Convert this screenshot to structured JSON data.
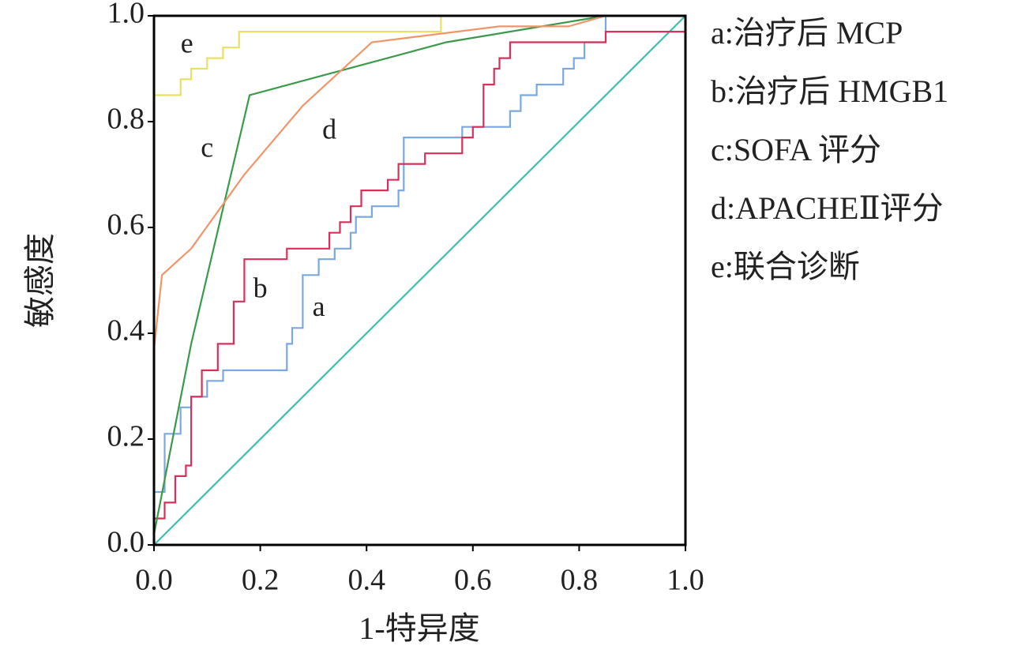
{
  "chart_data": {
    "type": "line",
    "x_label": "1-特异度",
    "y_label": "敏感度",
    "xlim": [
      0,
      1
    ],
    "ylim": [
      0,
      1
    ],
    "xticks": [
      {
        "value": 0,
        "label": "0.0"
      },
      0.2,
      0.4,
      0.6,
      0.8,
      {
        "value": 1,
        "label": "1.0"
      }
    ],
    "yticks": [
      {
        "value": 0,
        "label": "0.0"
      },
      0.2,
      0.4,
      0.6,
      0.8,
      {
        "value": 1,
        "label": "1.0"
      }
    ],
    "grid": false,
    "legend": "right",
    "reference": {
      "color": "#3cbfae",
      "x": [
        0,
        1
      ],
      "values": [
        0,
        1
      ]
    },
    "series": [
      {
        "name": "a:治疗后 MCP",
        "color": "#7aa8e0",
        "x": [
          0,
          0.02,
          0.02,
          0.05,
          0.05,
          0.07,
          0.07,
          0.1,
          0.1,
          0.13,
          0.13,
          0.25,
          0.25,
          0.26,
          0.26,
          0.28,
          0.28,
          0.31,
          0.31,
          0.34,
          0.34,
          0.37,
          0.37,
          0.38,
          0.38,
          0.41,
          0.41,
          0.46,
          0.46,
          0.47,
          0.47,
          0.58,
          0.58,
          0.67,
          0.67,
          0.69,
          0.69,
          0.72,
          0.72,
          0.77,
          0.77,
          0.79,
          0.79,
          0.81,
          0.81,
          0.85,
          0.85,
          1
        ],
        "values": [
          0.1,
          0.1,
          0.21,
          0.21,
          0.26,
          0.26,
          0.28,
          0.28,
          0.31,
          0.31,
          0.33,
          0.33,
          0.38,
          0.38,
          0.41,
          0.41,
          0.51,
          0.51,
          0.54,
          0.54,
          0.56,
          0.56,
          0.59,
          0.59,
          0.62,
          0.62,
          0.64,
          0.64,
          0.67,
          0.67,
          0.77,
          0.77,
          0.79,
          0.79,
          0.82,
          0.82,
          0.85,
          0.85,
          0.87,
          0.87,
          0.9,
          0.9,
          0.92,
          0.92,
          0.95,
          0.95,
          1,
          1
        ]
      },
      {
        "name": "b:治疗后 HMGB1",
        "color": "#d8305a",
        "x": [
          0,
          0.02,
          0.02,
          0.04,
          0.04,
          0.06,
          0.06,
          0.07,
          0.07,
          0.09,
          0.09,
          0.12,
          0.12,
          0.15,
          0.15,
          0.17,
          0.17,
          0.25,
          0.25,
          0.33,
          0.33,
          0.35,
          0.35,
          0.37,
          0.37,
          0.39,
          0.39,
          0.44,
          0.44,
          0.46,
          0.46,
          0.51,
          0.51,
          0.58,
          0.58,
          0.6,
          0.6,
          0.62,
          0.62,
          0.64,
          0.64,
          0.65,
          0.65,
          0.67,
          0.67,
          0.85,
          0.85,
          1
        ],
        "values": [
          0.05,
          0.05,
          0.08,
          0.08,
          0.13,
          0.13,
          0.15,
          0.15,
          0.28,
          0.28,
          0.33,
          0.33,
          0.38,
          0.38,
          0.46,
          0.46,
          0.54,
          0.54,
          0.56,
          0.56,
          0.59,
          0.59,
          0.61,
          0.61,
          0.64,
          0.64,
          0.67,
          0.67,
          0.69,
          0.69,
          0.72,
          0.72,
          0.74,
          0.74,
          0.77,
          0.77,
          0.79,
          0.79,
          0.87,
          0.87,
          0.9,
          0.9,
          0.92,
          0.92,
          0.95,
          0.95,
          0.97,
          0.97
        ]
      },
      {
        "name": "c:SOFA 评分",
        "color": "#3a9a4a",
        "x": [
          0,
          0.07,
          0.18,
          0.55,
          0.85,
          1
        ],
        "values": [
          0.02,
          0.38,
          0.85,
          0.95,
          1,
          1
        ]
      },
      {
        "name": "d:APACHEⅡ评分",
        "color": "#f0956a",
        "x": [
          0,
          0.015,
          0.07,
          0.17,
          0.28,
          0.41,
          0.65,
          0.78,
          0.85,
          1
        ],
        "values": [
          0.37,
          0.51,
          0.56,
          0.7,
          0.83,
          0.95,
          0.98,
          0.98,
          1,
          1
        ]
      },
      {
        "name": "e:联合诊断",
        "color": "#e8e060",
        "x": [
          0,
          0.05,
          0.05,
          0.07,
          0.07,
          0.1,
          0.1,
          0.13,
          0.13,
          0.16,
          0.16,
          0.54,
          0.54,
          1
        ],
        "values": [
          0.85,
          0.85,
          0.88,
          0.88,
          0.9,
          0.9,
          0.92,
          0.92,
          0.94,
          0.94,
          0.97,
          0.97,
          1,
          1
        ]
      }
    ],
    "annotations": [
      {
        "text": "a",
        "x": 0.31,
        "y": 0.445
      },
      {
        "text": "b",
        "x": 0.2,
        "y": 0.48
      },
      {
        "text": "c",
        "x": 0.1,
        "y": 0.746
      },
      {
        "text": "d",
        "x": 0.33,
        "y": 0.78
      },
      {
        "text": "e",
        "x": 0.062,
        "y": 0.943
      }
    ]
  }
}
